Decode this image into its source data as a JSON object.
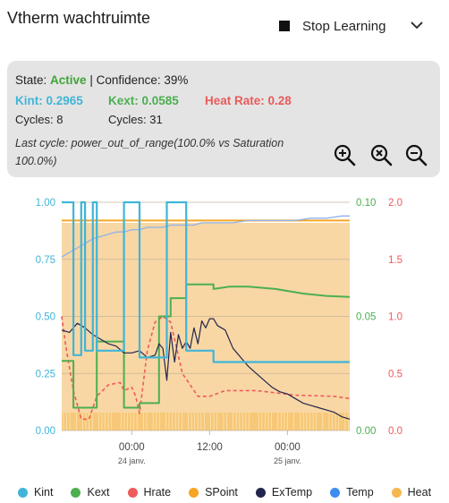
{
  "card": {
    "title": "Vtherm wachtruimte"
  },
  "controls": {
    "stop_label": "Stop Learning"
  },
  "status": {
    "state_label": "State:",
    "state_value": "Active",
    "confidence": "| Confidence: 39%",
    "kint": "Kint: 0.2965",
    "kext": "Kext: 0.0585",
    "heat_rate": "Heat Rate: 0.28",
    "cycles_kint": "Cycles: 8",
    "cycles_kext": "Cycles: 31",
    "last_cycle": "Last cycle: power_out_of_range(100.0% vs Saturation 100.0%)"
  },
  "icons": {
    "zoom_in": "zoom-in-icon",
    "zoom_reset": "zoom-reset-icon",
    "zoom_out": "zoom-out-icon",
    "chevron": "chevron-down-icon"
  },
  "colors": {
    "kint": "#40b5d8",
    "kext": "#4caf50",
    "hrate": "#ef5a5a",
    "spoint": "#f5a623",
    "extemp": "#22264d",
    "temp": "#3d8df0",
    "heat": "#f6b74e",
    "heat_fill": "#f8d7a5"
  },
  "chart_data": {
    "type": "line",
    "axes": {
      "left": {
        "min": 0,
        "max": 1,
        "ticks": [
          "0.00",
          "0.25",
          "0.50",
          "0.75",
          "1.00"
        ]
      },
      "mid": {
        "min": 0,
        "max": 0.1,
        "ticks": [
          "0.00",
          "0.05",
          "0.10"
        ]
      },
      "right": {
        "min": 0,
        "max": 2,
        "ticks": [
          "0.0",
          "0.5",
          "1.0",
          "1.5",
          "2.0"
        ]
      }
    },
    "x_range": [
      0,
      74
    ],
    "x_ticks": [
      {
        "x": 18,
        "label": "00:00",
        "sub": "24 janv."
      },
      {
        "x": 38,
        "label": "12:00",
        "sub": ""
      },
      {
        "x": 58,
        "label": "00:00",
        "sub": "25 janv."
      }
    ],
    "legend": [
      "Kint",
      "Kext",
      "Hrate",
      "SPoint",
      "ExTemp",
      "Temp",
      "Heat"
    ],
    "series": [
      {
        "name": "Kint",
        "axis": "left",
        "step": true,
        "x": [
          0,
          3,
          3,
          5,
          5,
          6,
          6,
          8,
          8,
          9,
          9,
          16,
          16,
          20,
          20,
          27,
          27,
          32,
          32,
          39,
          39,
          74
        ],
        "y": [
          1.0,
          1.0,
          0.33,
          0.33,
          1.0,
          1.0,
          0.35,
          0.35,
          1.0,
          1.0,
          0.35,
          0.35,
          1.0,
          1.0,
          0.32,
          0.32,
          1.0,
          1.0,
          0.35,
          0.35,
          0.3,
          0.3
        ]
      },
      {
        "name": "Kext",
        "axis": "mid",
        "step": true,
        "x": [
          0,
          3,
          3,
          9,
          9,
          16,
          16,
          20,
          20,
          25,
          25,
          28,
          28,
          32,
          32,
          39,
          39,
          43,
          48,
          55,
          62,
          68,
          74
        ],
        "y": [
          0.0305,
          0.0305,
          0.01,
          0.01,
          0.039,
          0.039,
          0.01,
          0.01,
          0.012,
          0.012,
          0.05,
          0.05,
          0.058,
          0.058,
          0.064,
          0.064,
          0.062,
          0.063,
          0.063,
          0.062,
          0.06,
          0.059,
          0.0585
        ]
      },
      {
        "name": "Hrate",
        "axis": "right",
        "x": [
          0,
          1,
          2,
          3,
          5,
          7,
          9,
          12,
          15,
          16,
          18,
          19,
          20,
          22,
          24,
          26,
          28,
          29,
          31,
          33,
          35,
          38,
          42,
          50,
          60,
          70,
          74
        ],
        "y": [
          1.0,
          0.75,
          0.55,
          0.35,
          0.1,
          0.1,
          0.3,
          0.4,
          0.42,
          0.35,
          0.38,
          0.3,
          0.15,
          0.7,
          0.95,
          1.0,
          0.95,
          0.8,
          0.5,
          0.4,
          0.3,
          0.3,
          0.35,
          0.35,
          0.31,
          0.3,
          0.28
        ]
      },
      {
        "name": "SPoint",
        "axis": "left",
        "x": [
          0,
          74
        ],
        "y": [
          0.92,
          0.92
        ]
      },
      {
        "name": "ExTemp",
        "axis": "left",
        "x": [
          0,
          2,
          4,
          6,
          8,
          10,
          12,
          14,
          16,
          18,
          20,
          22,
          24,
          25,
          26,
          27,
          28,
          29,
          30,
          31,
          32,
          33,
          34,
          35,
          36,
          37,
          38,
          39,
          40,
          42,
          44,
          46,
          48,
          50,
          52,
          54,
          56,
          58,
          60,
          62,
          64,
          66,
          68,
          70,
          72,
          74
        ],
        "y": [
          0.44,
          0.43,
          0.47,
          0.45,
          0.42,
          0.4,
          0.38,
          0.37,
          0.34,
          0.34,
          0.35,
          0.32,
          0.33,
          0.38,
          0.36,
          0.22,
          0.43,
          0.3,
          0.42,
          0.36,
          0.39,
          0.36,
          0.45,
          0.38,
          0.48,
          0.45,
          0.49,
          0.49,
          0.46,
          0.44,
          0.36,
          0.32,
          0.28,
          0.25,
          0.22,
          0.19,
          0.17,
          0.16,
          0.14,
          0.12,
          0.11,
          0.1,
          0.09,
          0.08,
          0.06,
          0.05
        ]
      },
      {
        "name": "Temp",
        "axis": "left",
        "x": [
          0,
          2,
          4,
          6,
          8,
          10,
          12,
          14,
          16,
          18,
          20,
          22,
          24,
          26,
          28,
          30,
          32,
          34,
          36,
          40,
          44,
          48,
          52,
          56,
          60,
          64,
          68,
          72,
          74
        ],
        "y": [
          0.76,
          0.78,
          0.8,
          0.82,
          0.84,
          0.85,
          0.86,
          0.87,
          0.87,
          0.88,
          0.88,
          0.89,
          0.89,
          0.89,
          0.9,
          0.9,
          0.9,
          0.9,
          0.91,
          0.91,
          0.91,
          0.92,
          0.92,
          0.92,
          0.92,
          0.93,
          0.93,
          0.94,
          0.94
        ]
      },
      {
        "name": "Heat",
        "axis": "left",
        "x": [
          0,
          74
        ],
        "y": [
          0.91,
          0.91
        ]
      }
    ]
  }
}
